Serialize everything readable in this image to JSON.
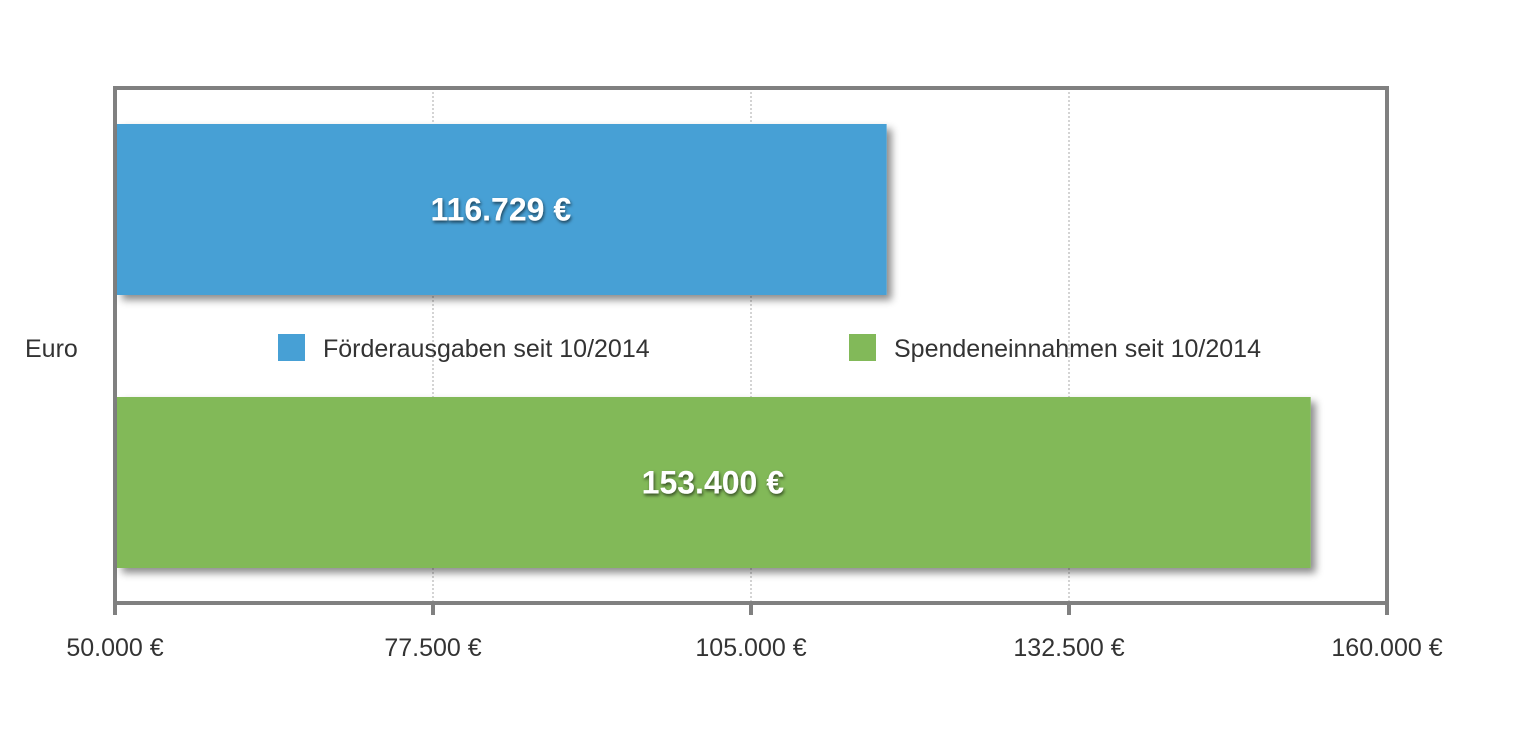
{
  "chart_data": {
    "type": "bar",
    "orientation": "horizontal",
    "ylabel": "Euro",
    "xlim": [
      50000,
      160000
    ],
    "x_ticks": [
      50000,
      77500,
      105000,
      132500,
      160000
    ],
    "x_tick_labels": [
      "50.000 €",
      "77.500 €",
      "105.000 €",
      "132.500 €",
      "160.000 €"
    ],
    "grid": true,
    "legend_position": "middle",
    "series": [
      {
        "name": "Förderausgaben seit 10/2014",
        "value": 116729,
        "label": "116.729 €",
        "color": "#47a0d5"
      },
      {
        "name": "Spendeneinnahmen seit 10/2014",
        "value": 153400,
        "label": "153.400 €",
        "color": "#82b959"
      }
    ]
  }
}
